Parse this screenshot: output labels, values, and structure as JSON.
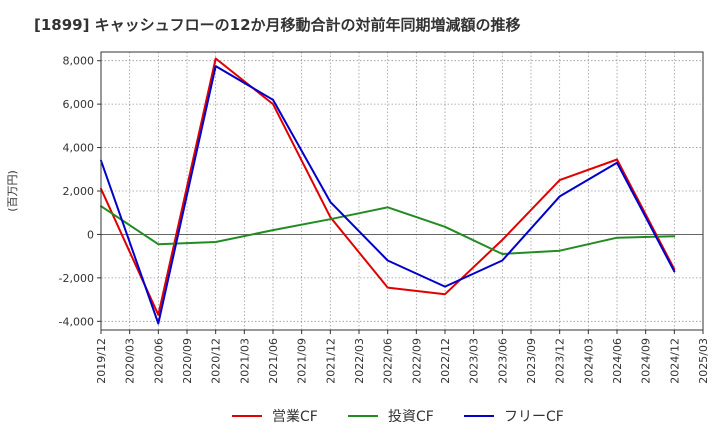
{
  "title": "[1899]  キャッシュフローの12か月移動合計の対前年同期増減額の推移",
  "chart_data": {
    "type": "line",
    "title": "[1899]  キャッシュフローの12か月移動合計の対前年同期増減額の推移",
    "ylabel": "(百万円)",
    "xlabel": "",
    "ylim": [
      -4400,
      8400
    ],
    "yticks": [
      -4000,
      -2000,
      0,
      2000,
      4000,
      6000,
      8000
    ],
    "ytick_labels": [
      "-4,000",
      "-2,000",
      "0",
      "2,000",
      "4,000",
      "6,000",
      "8,000"
    ],
    "x_categories": [
      "2019/12",
      "2020/03",
      "2020/06",
      "2020/09",
      "2020/12",
      "2021/03",
      "2021/06",
      "2021/09",
      "2021/12",
      "2022/03",
      "2022/06",
      "2022/09",
      "2022/12",
      "2023/03",
      "2023/06",
      "2023/09",
      "2023/12",
      "2024/03",
      "2024/06",
      "2024/09",
      "2024/12",
      "2025/03"
    ],
    "grid": true,
    "legend_position": "bottom",
    "series": [
      {
        "name": "営業CF",
        "color": "#e00000",
        "points": [
          [
            "2019/12",
            2100
          ],
          [
            "2020/06",
            -3700
          ],
          [
            "2020/12",
            8100
          ],
          [
            "2021/06",
            6000
          ],
          [
            "2021/12",
            800
          ],
          [
            "2022/06",
            -2450
          ],
          [
            "2022/12",
            -2750
          ],
          [
            "2023/06",
            -250
          ],
          [
            "2023/12",
            2500
          ],
          [
            "2024/06",
            3450
          ],
          [
            "2024/12",
            -1600
          ]
        ]
      },
      {
        "name": "投資CF",
        "color": "#228b22",
        "points": [
          [
            "2019/12",
            1300
          ],
          [
            "2020/06",
            -450
          ],
          [
            "2020/12",
            -350
          ],
          [
            "2021/06",
            200
          ],
          [
            "2021/12",
            700
          ],
          [
            "2022/06",
            1250
          ],
          [
            "2022/12",
            350
          ],
          [
            "2023/06",
            -900
          ],
          [
            "2023/12",
            -750
          ],
          [
            "2024/06",
            -150
          ],
          [
            "2024/12",
            -80
          ]
        ]
      },
      {
        "name": "フリーCF",
        "color": "#0000cc",
        "points": [
          [
            "2019/12",
            3400
          ],
          [
            "2020/06",
            -4100
          ],
          [
            "2020/12",
            7750
          ],
          [
            "2021/06",
            6200
          ],
          [
            "2021/12",
            1500
          ],
          [
            "2022/06",
            -1200
          ],
          [
            "2022/12",
            -2400
          ],
          [
            "2023/06",
            -1200
          ],
          [
            "2023/12",
            1750
          ],
          [
            "2024/06",
            3300
          ],
          [
            "2024/12",
            -1700
          ]
        ]
      }
    ]
  }
}
